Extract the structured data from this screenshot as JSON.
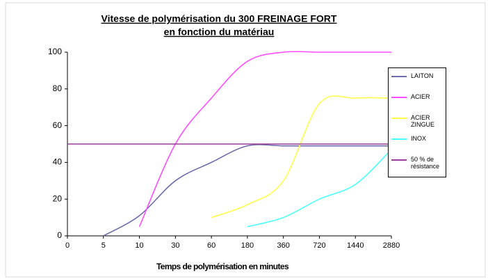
{
  "chart_data": {
    "type": "line",
    "title": "Vitesse de polymérisation du 300 FREINAGE  FORT",
    "subtitle": "en fonction du matériau",
    "x_label": "Temps de polymérisation en minutes",
    "categories": [
      "0",
      "5",
      "10",
      "30",
      "60",
      "180",
      "360",
      "720",
      "1440",
      "2880"
    ],
    "series": [
      {
        "name": "LAITON",
        "color": "#6b6bab",
        "values": [
          null,
          0,
          11,
          30,
          40,
          49,
          49,
          49,
          49,
          49
        ]
      },
      {
        "name": "ACIER",
        "color": "#ff4cff",
        "values": [
          null,
          null,
          5,
          50,
          75,
          95,
          100,
          100,
          100,
          100
        ]
      },
      {
        "name": "ACIER ZINGUE",
        "color": "#ffff4c",
        "values": [
          null,
          null,
          null,
          null,
          10,
          17,
          30,
          72,
          75,
          75
        ]
      },
      {
        "name": "INOX",
        "color": "#4cffff",
        "values": [
          null,
          null,
          null,
          null,
          null,
          5,
          10,
          20,
          28,
          47
        ]
      },
      {
        "name": "50 % de résistance",
        "color": "#9a3d9a",
        "values": [
          50,
          50,
          50,
          50,
          50,
          50,
          50,
          50,
          50,
          50
        ]
      }
    ],
    "ylim": [
      0,
      100
    ],
    "yticks": [
      0,
      20,
      40,
      60,
      80,
      100
    ],
    "grid": false,
    "legend": "right"
  }
}
